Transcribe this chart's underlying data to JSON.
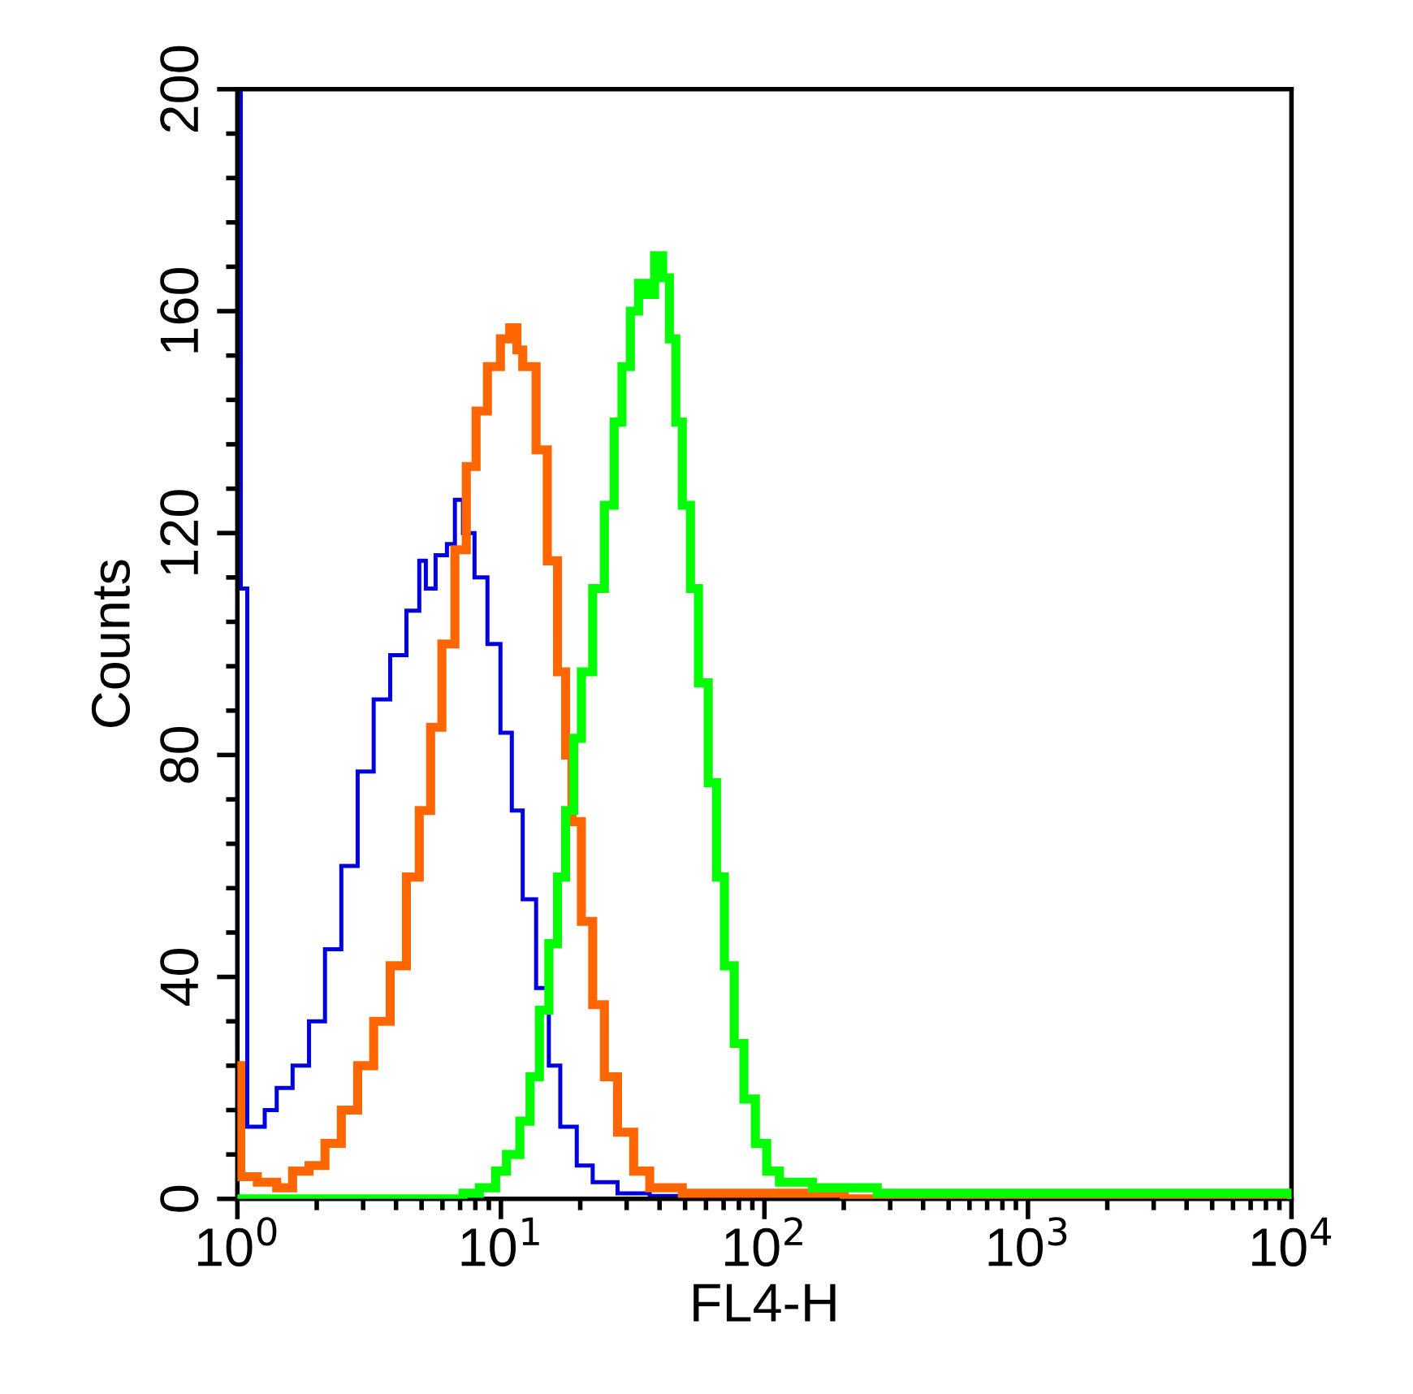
{
  "chart_data": {
    "type": "step",
    "xlabel": "FL4-H",
    "ylabel": "Counts",
    "log": "x",
    "grid": false,
    "legend": false,
    "xlim": [
      1,
      10000
    ],
    "xticks": [
      {
        "value": 1,
        "label": "10$^{0}$"
      },
      {
        "value": 2,
        "label": null
      },
      {
        "value": 3,
        "label": null
      },
      {
        "value": 4,
        "label": null
      },
      {
        "value": 5,
        "label": null
      },
      {
        "value": 6,
        "label": null
      },
      {
        "value": 7,
        "label": null
      },
      {
        "value": 8,
        "label": null
      },
      {
        "value": 9,
        "label": null
      },
      {
        "value": 10,
        "label": "10$^{1}$"
      },
      {
        "value": 20,
        "label": null
      },
      {
        "value": 30,
        "label": null
      },
      {
        "value": 40,
        "label": null
      },
      {
        "value": 50,
        "label": null
      },
      {
        "value": 60,
        "label": null
      },
      {
        "value": 70,
        "label": null
      },
      {
        "value": 80,
        "label": null
      },
      {
        "value": 90,
        "label": null
      },
      {
        "value": 100,
        "label": "10$^{2}$"
      },
      {
        "value": 200,
        "label": null
      },
      {
        "value": 300,
        "label": null
      },
      {
        "value": 400,
        "label": null
      },
      {
        "value": 500,
        "label": null
      },
      {
        "value": 600,
        "label": null
      },
      {
        "value": 700,
        "label": null
      },
      {
        "value": 800,
        "label": null
      },
      {
        "value": 900,
        "label": null
      },
      {
        "value": 1000,
        "label": "10$^{3}$"
      },
      {
        "value": 2000,
        "label": null
      },
      {
        "value": 3000,
        "label": null
      },
      {
        "value": 4000,
        "label": null
      },
      {
        "value": 5000,
        "label": null
      },
      {
        "value": 6000,
        "label": null
      },
      {
        "value": 7000,
        "label": null
      },
      {
        "value": 8000,
        "label": null
      },
      {
        "value": 9000,
        "label": null
      },
      {
        "value": 10000,
        "label": "10$^{4}$"
      }
    ],
    "ylim": [
      0,
      200
    ],
    "yticks": [
      0,
      {
        "value": 8,
        "label": null
      },
      {
        "value": 16,
        "label": null
      },
      {
        "value": 24,
        "label": null
      },
      {
        "value": 32,
        "label": null
      },
      40,
      {
        "value": 48,
        "label": null
      },
      {
        "value": 56,
        "label": null
      },
      {
        "value": 64,
        "label": null
      },
      {
        "value": 72,
        "label": null
      },
      80,
      {
        "value": 88,
        "label": null
      },
      {
        "value": 96,
        "label": null
      },
      {
        "value": 104,
        "label": null
      },
      {
        "value": 112,
        "label": null
      },
      120,
      {
        "value": 128,
        "label": null
      },
      {
        "value": 136,
        "label": null
      },
      {
        "value": 144,
        "label": null
      },
      {
        "value": 152,
        "label": null
      },
      160,
      {
        "value": 168,
        "label": null
      },
      {
        "value": 176,
        "label": null
      },
      {
        "value": 184,
        "label": null
      },
      {
        "value": 192,
        "label": null
      },
      200
    ],
    "series": [
      {
        "color": "#0000dd",
        "x": [
          1,
          1.03,
          1.09,
          1.19,
          1.27,
          1.41,
          1.62,
          1.87,
          2.15,
          2.48,
          2.86,
          3.29,
          3.8,
          4.38,
          4.9,
          5.19,
          5.65,
          6.24,
          6.69,
          7.18,
          7.94,
          8.89,
          9.96,
          11.0,
          12.1,
          13.6,
          15.2,
          16.8,
          19.4,
          22.3,
          27.7,
          36.7,
          48.8,
          64.8
        ],
        "values": [
          200,
          110,
          13,
          13,
          16,
          20,
          24,
          32,
          45,
          60,
          77,
          90,
          98,
          106,
          115,
          110,
          116,
          118,
          126,
          120,
          112,
          100,
          84,
          70,
          54,
          38,
          24,
          13,
          6,
          3,
          1,
          0.5,
          1,
          0
        ]
      },
      {
        "color": "#ff6600",
        "x": [
          1,
          1.03,
          1.19,
          1.41,
          1.62,
          1.87,
          2.15,
          2.48,
          2.86,
          3.29,
          3.8,
          4.38,
          4.9,
          5.41,
          5.97,
          6.69,
          7.39,
          8.05,
          8.89,
          9.96,
          10.8,
          11.5,
          12.1,
          13.6,
          15.0,
          16.4,
          17.6,
          18.6,
          20.2,
          22.3,
          24.7,
          27.7,
          31.9,
          36.7,
          48.8,
          74.6,
          114,
          152,
          201,
          10000
        ],
        "values": [
          24,
          4,
          3,
          2,
          5,
          6,
          10,
          16,
          24,
          32,
          42,
          58,
          70,
          85,
          100,
          117,
          132,
          142,
          150,
          155,
          157,
          153,
          150,
          135,
          115,
          95,
          80,
          68,
          50,
          35,
          22,
          12,
          5,
          2,
          1,
          1,
          1,
          1,
          0,
          0
        ]
      },
      {
        "color": "#00ff00",
        "x": [
          1,
          6.98,
          7.18,
          8.28,
          9.55,
          10.5,
          11.8,
          12.9,
          14.0,
          15.2,
          16.4,
          17.6,
          18.9,
          20.2,
          22.3,
          24.7,
          26.9,
          28.8,
          31.0,
          33.3,
          35.7,
          38.3,
          41.1,
          43.6,
          46.1,
          48.8,
          52.4,
          56.2,
          61.2,
          65.8,
          70.5,
          76.8,
          83.6,
          92.4,
          102,
          114,
          152,
          268,
          10000
        ],
        "values": [
          0,
          0,
          1,
          2,
          5,
          8,
          14,
          22,
          34,
          46,
          58,
          70,
          83,
          95,
          110,
          125,
          140,
          150,
          160,
          165,
          163,
          170,
          166,
          155,
          140,
          125,
          110,
          93,
          75,
          58,
          42,
          28,
          18,
          10,
          5,
          3,
          2,
          1,
          0
        ]
      }
    ]
  }
}
